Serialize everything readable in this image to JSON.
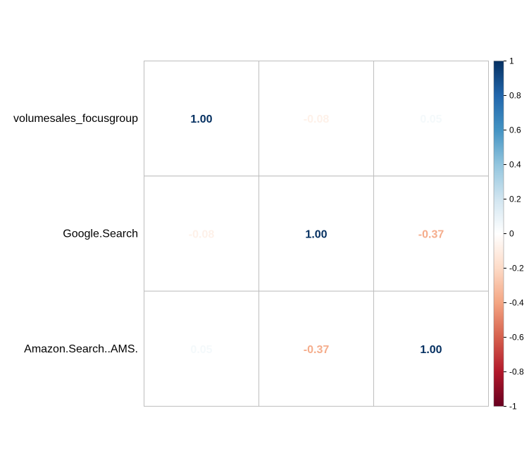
{
  "chart_data": {
    "type": "heatmap",
    "title": "",
    "rows": [
      "volumesales_focusgroup",
      "Google.Search",
      "Amazon.Search..AMS."
    ],
    "cols": [
      "volumesales_focusgroup",
      "Google.Search",
      "Amazon.Search..AMS."
    ],
    "values": [
      [
        1.0,
        -0.08,
        0.05
      ],
      [
        -0.08,
        1.0,
        -0.37
      ],
      [
        0.05,
        -0.37,
        1.0
      ]
    ],
    "value_labels": [
      [
        "1.00",
        "-0.08",
        "0.05"
      ],
      [
        "-0.08",
        "1.00",
        "-0.37"
      ],
      [
        "0.05",
        "-0.37",
        "1.00"
      ]
    ],
    "colorbar": {
      "range": [
        -1,
        1
      ],
      "ticks": [
        "1",
        "0.8",
        "0.6",
        "0.4",
        "0.2",
        "0",
        "-0.2",
        "-0.4",
        "-0.6",
        "-0.8",
        "-1"
      ],
      "tick_values": [
        1,
        0.8,
        0.6,
        0.4,
        0.2,
        0,
        -0.2,
        -0.4,
        -0.6,
        -0.8,
        -1
      ]
    },
    "colors": {
      "strong_negative": "#67001F",
      "negative": "#B2182B",
      "mid_negative": "#D6604D",
      "light_negative": "#F4A582",
      "pale_negative": "#FDDBC7",
      "zero": "#FFFFFF",
      "pale_positive": "#D1E5F0",
      "light_positive": "#92C5DE",
      "mid_positive": "#4393C3",
      "positive": "#2166AC",
      "strong_positive": "#053061",
      "grid": "#BEBEBE"
    }
  }
}
